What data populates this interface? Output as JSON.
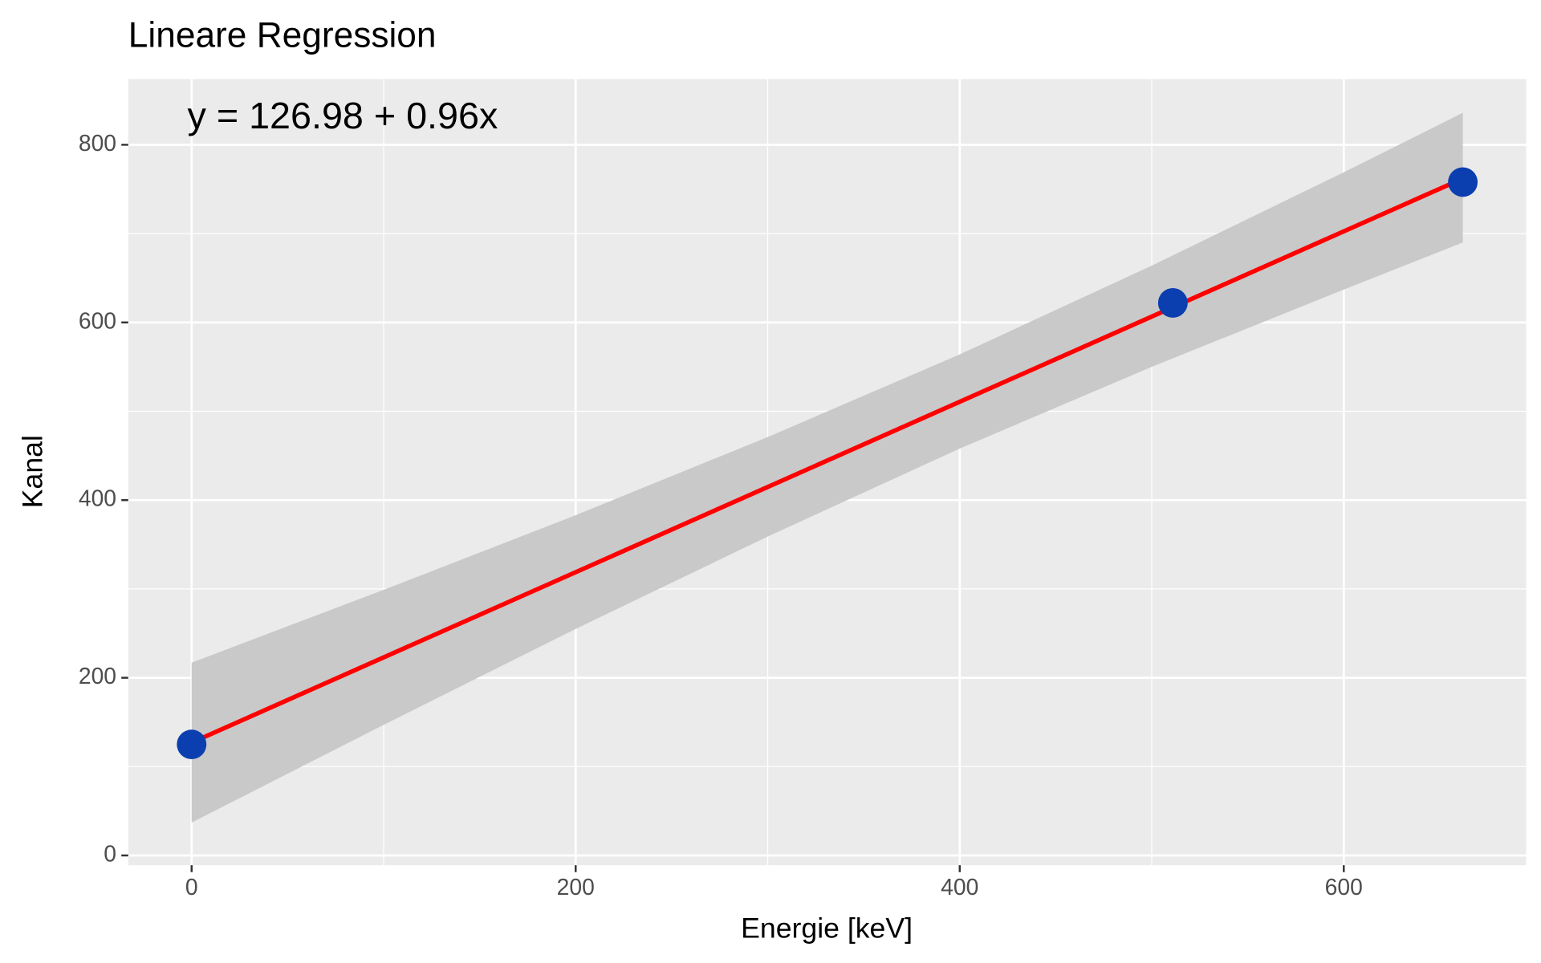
{
  "chart_data": {
    "type": "scatter",
    "title": "Lineare Regression",
    "annotation": "y = 126.98 + 0.96x",
    "x_label": "Energie [keV]",
    "y_label": "Kanal",
    "xlim": [
      -33,
      695
    ],
    "ylim": [
      -11,
      874
    ],
    "xticks": [
      0,
      200,
      400,
      600
    ],
    "yticks": [
      0,
      200,
      400,
      600,
      800
    ],
    "x_minor_grid": [
      100,
      300,
      500
    ],
    "y_minor_grid": [
      100,
      300,
      500,
      700
    ],
    "grid": true,
    "band": {
      "color": "#c9c9c9",
      "x": [
        0,
        100,
        200,
        300,
        400,
        500,
        600,
        662
      ],
      "lower": [
        37,
        147,
        255,
        359,
        458,
        550,
        637,
        690
      ],
      "upper": [
        217,
        299,
        383,
        471,
        564,
        664,
        769,
        836
      ]
    },
    "fit": {
      "color": "#ff0000",
      "x": [
        0,
        662
      ],
      "y": [
        127,
        762
      ]
    },
    "points": {
      "color": "#0b3fb0",
      "x": [
        0,
        511,
        662
      ],
      "y": [
        125,
        622,
        758
      ]
    }
  }
}
